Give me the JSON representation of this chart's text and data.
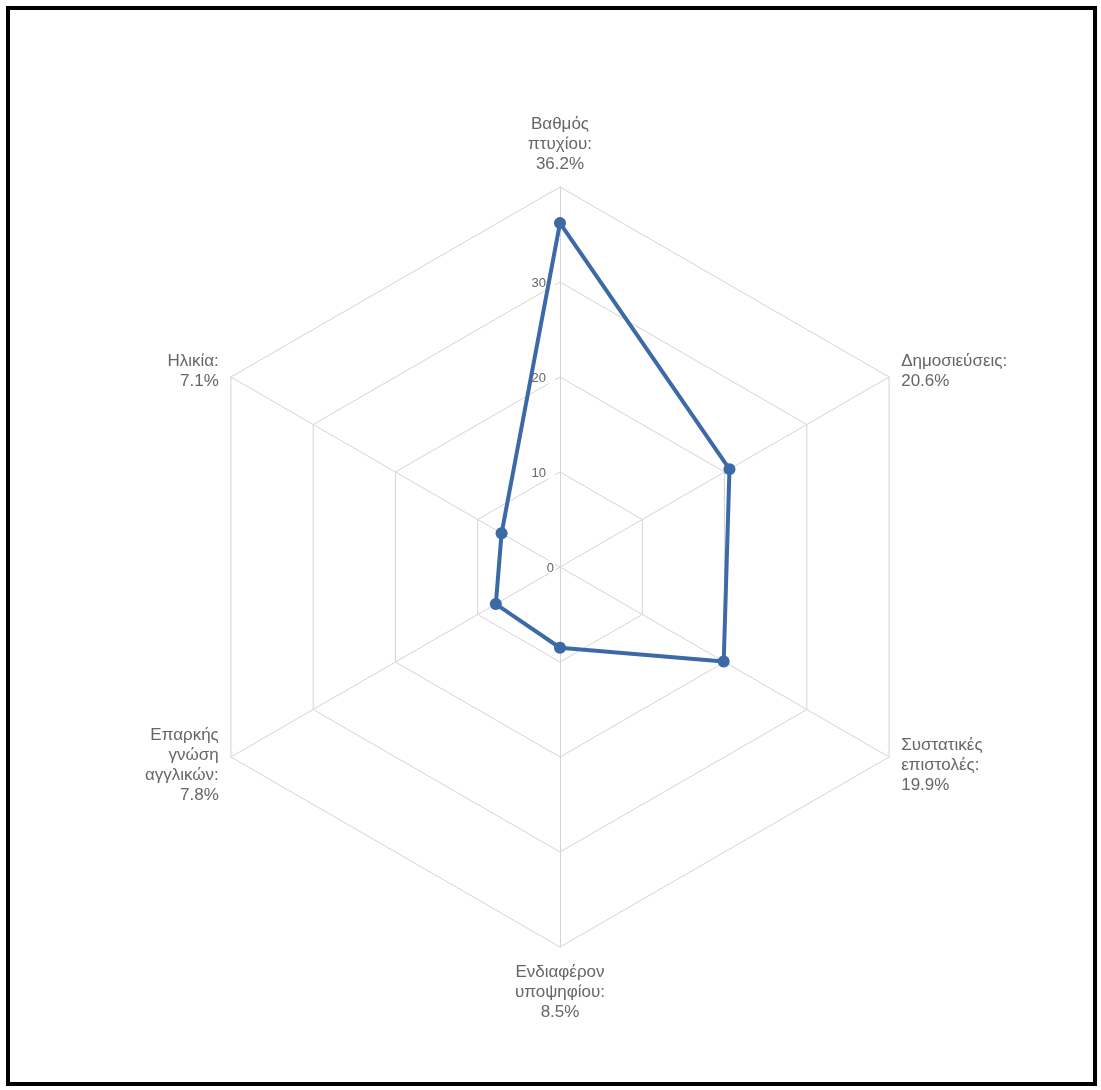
{
  "chart_data": {
    "type": "radar",
    "categories": [
      "Βαθμός πτυχίου: 36.2%",
      "Δημοσιεύσεις: 20.6%",
      "Συστατικές επιστολές: 19.9%",
      "Ενδιαφέρον υποψηφίου: 8.5%",
      "Επαρκής γνώση αγγλικών: 7.8%",
      "Ηλικία: 7.1%"
    ],
    "series": [
      {
        "color": "#3b6aa6",
        "values": [
          36.2,
          20.6,
          19.9,
          8.5,
          7.8,
          7.1
        ]
      }
    ],
    "ylim": [
      0,
      40
    ],
    "yticks": [
      0,
      10,
      20,
      30
    ],
    "grid": true,
    "marker": "circle",
    "line_style": "solid"
  }
}
